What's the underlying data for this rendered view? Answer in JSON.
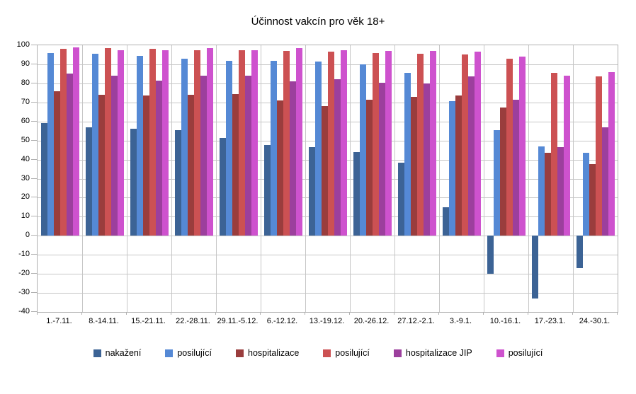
{
  "title": "Účinnost vakcín pro věk 18+",
  "colors": {
    "background": "#FFFFFF",
    "gridline": "#C6C6C6",
    "axis": "#B0B0B0",
    "text": "#000000"
  },
  "chart_data": {
    "type": "bar",
    "title": "Účinnost vakcín pro věk 18+",
    "xlabel": "",
    "ylabel": "",
    "ylim": [
      -40,
      100
    ],
    "ytick_step": 10,
    "grid": true,
    "legend_position": "bottom",
    "categories": [
      "1.-7.11.",
      "8.-14.11.",
      "15.-21.11.",
      "22.-28.11.",
      "29.11.-5.12.",
      "6.-12.12.",
      "13.-19.12.",
      "20.-26.12.",
      "27.12.-2.1.",
      "3.-9.1.",
      "10.-16.1.",
      "17.-23.1.",
      "24.-30.1."
    ],
    "series": [
      {
        "name": "nakažení",
        "color": "#3C6395",
        "values": [
          59,
          57,
          56,
          55.5,
          51.5,
          47.5,
          46.5,
          44,
          38.5,
          15,
          -20,
          -33,
          -17
        ]
      },
      {
        "name": "posilující",
        "color": "#5589D5",
        "values": [
          96,
          95.5,
          94.5,
          93,
          92,
          92,
          91.5,
          90,
          85.5,
          70.5,
          55.5,
          47,
          43.5
        ]
      },
      {
        "name": "hospitalizace",
        "color": "#9A3D3D",
        "values": [
          76,
          74,
          73.5,
          74,
          74.5,
          71,
          68,
          71.5,
          73,
          73.5,
          67.5,
          43.5,
          37.5
        ]
      },
      {
        "name": "posilující",
        "color": "#CC5153",
        "values": [
          98,
          98.5,
          98,
          97.5,
          97.5,
          97,
          96.5,
          96,
          95.5,
          95,
          93,
          85.5,
          83.5
        ]
      },
      {
        "name": "hospitalizace JIP",
        "color": "#9C3F9D",
        "values": [
          85,
          84,
          81.5,
          84,
          84,
          81,
          82,
          80.5,
          80,
          83.5,
          71.5,
          46.5,
          57
        ]
      },
      {
        "name": "posilující",
        "color": "#CE52CE",
        "values": [
          99,
          97.5,
          97.5,
          98.5,
          97.5,
          98.5,
          97.5,
          97,
          97,
          96.5,
          94,
          84,
          86
        ]
      }
    ]
  }
}
